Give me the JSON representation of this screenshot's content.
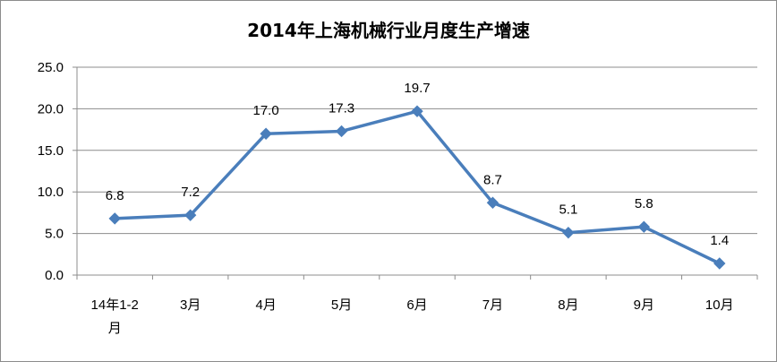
{
  "chart_data": {
    "type": "line",
    "title": "2014年上海机械行业月度生产增速",
    "categories": [
      "14年1-2月",
      "3月",
      "4月",
      "5月",
      "6月",
      "7月",
      "8月",
      "9月",
      "10月"
    ],
    "series": [
      {
        "values": [
          6.8,
          7.2,
          17.0,
          17.3,
          19.7,
          8.7,
          5.1,
          5.8,
          1.4
        ],
        "color": "#4a7ebb",
        "marker": "diamond"
      }
    ],
    "data_labels": [
      "6.8",
      "7.2",
      "17.0",
      "17.3",
      "19.7",
      "8.7",
      "5.1",
      "5.8",
      "1.4"
    ],
    "y_ticks": [
      "0.0",
      "5.0",
      "10.0",
      "15.0",
      "20.0",
      "25.0"
    ],
    "ylim": [
      0,
      25
    ],
    "grid": true,
    "legend": "none",
    "xlabel": "",
    "ylabel": ""
  }
}
